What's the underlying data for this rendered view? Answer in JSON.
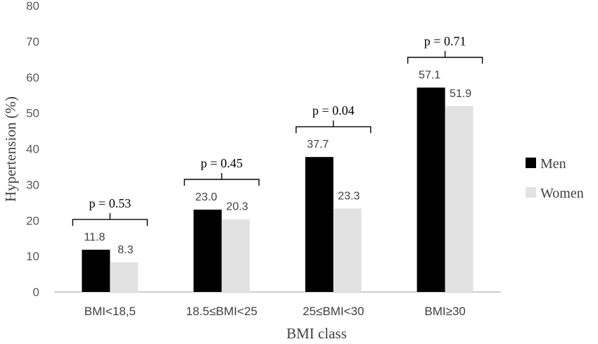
{
  "chart_data": {
    "type": "bar",
    "xlabel": "BMI class",
    "ylabel": "Hypertension  (%)",
    "ylim": [
      0,
      80
    ],
    "yticks": [
      0,
      10,
      20,
      30,
      40,
      50,
      60,
      70,
      80
    ],
    "grid": false,
    "legend_position": "right",
    "categories": [
      "BMI<18,5",
      "18.5≤BMI<25",
      "25≤BMI<30",
      "BMI≥30"
    ],
    "series": [
      {
        "name": "Men",
        "color": "#000000",
        "values": [
          11.8,
          23.0,
          37.7,
          57.1
        ],
        "labels": [
          "11.8",
          "23.0",
          "37.7",
          "57.1"
        ]
      },
      {
        "name": "Women",
        "color": "#e2e2e2",
        "values": [
          8.3,
          20.3,
          23.3,
          51.9
        ],
        "labels": [
          "8.3",
          "20.3",
          "23.3",
          "51.9"
        ]
      }
    ],
    "annotations": [
      "p = 0.53",
      "p = 0.45",
      "p = 0.04",
      "p = 0.71"
    ]
  }
}
